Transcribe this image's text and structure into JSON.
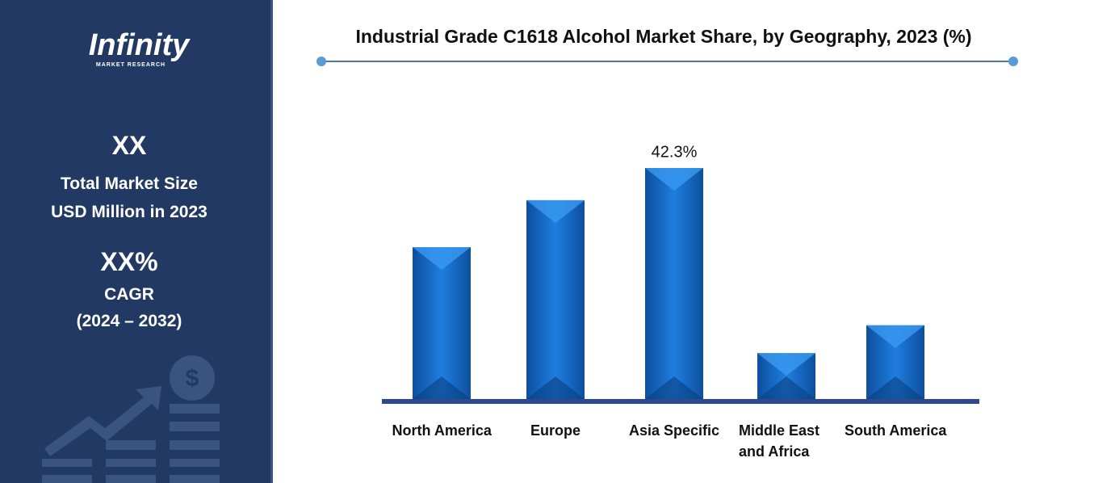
{
  "sidebar": {
    "brand": "Infinity",
    "brand_sub": "MARKET RESEARCH",
    "market_size": "XX",
    "market_size_label_1": "Total Market Size",
    "market_size_label_2": "USD Million in 2023",
    "cagr": "XX%",
    "cagr_label": "CAGR",
    "cagr_period": "(2024 – 2032)"
  },
  "chart_data": {
    "type": "bar",
    "title": "Industrial Grade C1618 Alcohol Market Share, by Geography, 2023 (%)",
    "categories": [
      "North America",
      "Europe",
      "Asia Specific",
      "Middle East and Africa",
      "South America"
    ],
    "values": [
      27.8,
      36.4,
      42.3,
      8.4,
      13.5
    ],
    "value_labels": [
      null,
      null,
      "42.3%",
      null,
      null
    ],
    "color": "#1f78d1"
  }
}
